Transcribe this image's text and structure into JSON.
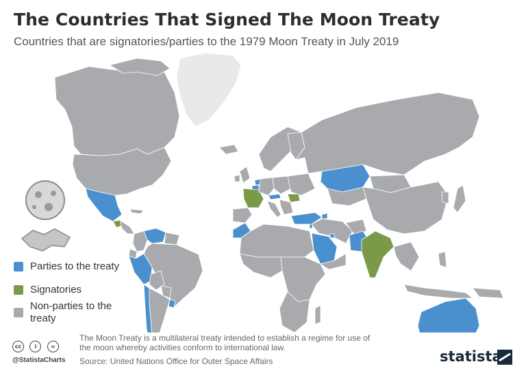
{
  "header": {
    "title": "The Countries That Signed The Moon Treaty",
    "subtitle": "Countries that are signatories/parties to the 1979 Moon Treaty in July 2019"
  },
  "legend": {
    "items": [
      {
        "label": "Parties to the treaty",
        "color": "#4a90cf"
      },
      {
        "label": "Signatories",
        "color": "#7a9a48"
      },
      {
        "label": "Non-parties to the treaty",
        "color": "#a8aaad"
      }
    ]
  },
  "map_data": {
    "parties": [
      "Mexico",
      "Venezuela",
      "Peru",
      "Chile",
      "Uruguay",
      "Morocco",
      "Saudi Arabia",
      "Turkey",
      "Armenia",
      "Kazakhstan",
      "Kuwait",
      "Lebanon",
      "Pakistan",
      "Netherlands",
      "Belgium",
      "Austria",
      "Australia"
    ],
    "signatories": [
      "France",
      "Romania",
      "Guatemala",
      "India"
    ],
    "colors": {
      "party": "#4a90cf",
      "signatory": "#7a9a48",
      "non_party": "#a8aaad",
      "greenland": "#e9e9e9",
      "border": "#ffffff"
    }
  },
  "footer": {
    "note": "The Moon Treaty is a multilateral treaty intended to establish a regime for use of the moon whereby activities conform to international law.",
    "source": "Source: United Nations Office for Outer Space Affairs",
    "handle": "@StatistaCharts",
    "cc_icons": [
      "cc-icon",
      "attribution-icon",
      "equal-icon"
    ],
    "brand": "statista"
  }
}
